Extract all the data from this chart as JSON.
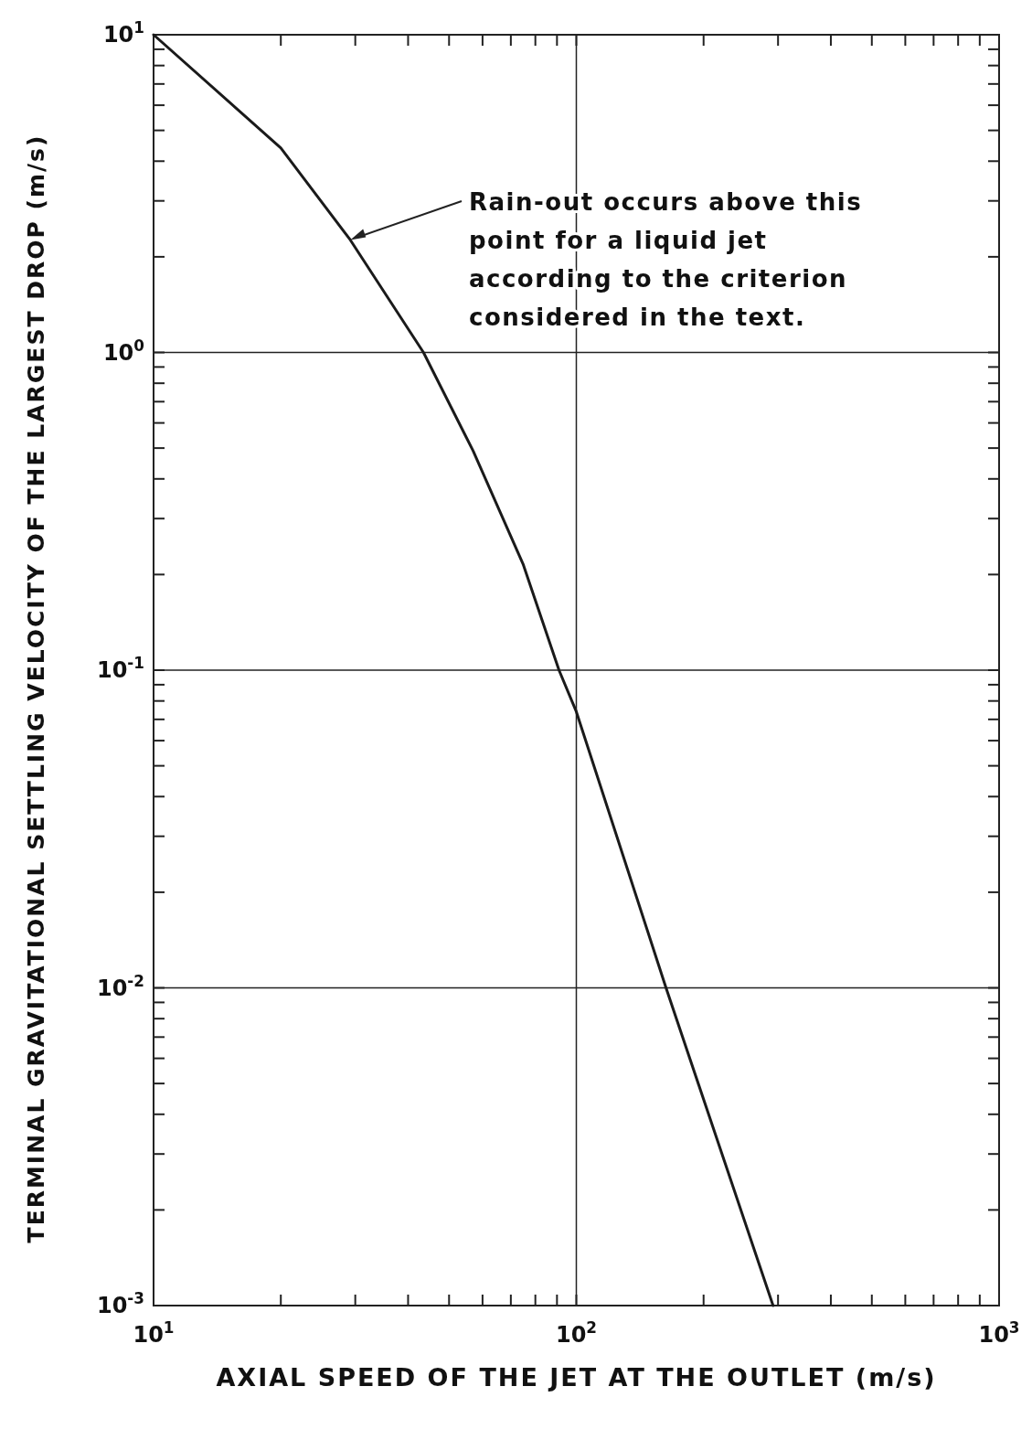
{
  "chart_data": {
    "type": "line",
    "xlabel": "AXIAL SPEED OF THE JET AT THE OUTLET (m/s)",
    "ylabel": "TERMINAL GRAVITATIONAL SETTLING VELOCITY OF THE LARGEST DROP (m/s)",
    "log": "xy",
    "grid": true,
    "marker": "none",
    "line_style": "solid",
    "xlim": [
      10,
      1000
    ],
    "ylim": [
      0.001,
      10
    ],
    "xticks": [
      {
        "value": 10,
        "label": "10$^{1}$"
      },
      {
        "value": 20,
        "label": null
      },
      {
        "value": 30,
        "label": null
      },
      {
        "value": 40,
        "label": null
      },
      {
        "value": 50,
        "label": null
      },
      {
        "value": 60,
        "label": null
      },
      {
        "value": 70,
        "label": null
      },
      {
        "value": 80,
        "label": null
      },
      {
        "value": 90,
        "label": null
      },
      {
        "value": 100,
        "label": "10$^{2}$"
      },
      {
        "value": 200,
        "label": null
      },
      {
        "value": 300,
        "label": null
      },
      {
        "value": 400,
        "label": null
      },
      {
        "value": 500,
        "label": null
      },
      {
        "value": 600,
        "label": null
      },
      {
        "value": 700,
        "label": null
      },
      {
        "value": 800,
        "label": null
      },
      {
        "value": 900,
        "label": null
      },
      {
        "value": 1000,
        "label": "10$^{3}$"
      }
    ],
    "yticks": [
      {
        "value": 0.001,
        "label": "10$^{-3}$"
      },
      {
        "value": 0.002,
        "label": null
      },
      {
        "value": 0.003,
        "label": null
      },
      {
        "value": 0.004,
        "label": null
      },
      {
        "value": 0.005,
        "label": null
      },
      {
        "value": 0.006,
        "label": null
      },
      {
        "value": 0.007,
        "label": null
      },
      {
        "value": 0.008,
        "label": null
      },
      {
        "value": 0.009,
        "label": null
      },
      {
        "value": 0.01,
        "label": "10$^{-2}$"
      },
      {
        "value": 0.02,
        "label": null
      },
      {
        "value": 0.03,
        "label": null
      },
      {
        "value": 0.04,
        "label": null
      },
      {
        "value": 0.05,
        "label": null
      },
      {
        "value": 0.06,
        "label": null
      },
      {
        "value": 0.07,
        "label": null
      },
      {
        "value": 0.08,
        "label": null
      },
      {
        "value": 0.09,
        "label": null
      },
      {
        "value": 0.1,
        "label": "10$^{-1}$"
      },
      {
        "value": 0.2,
        "label": null
      },
      {
        "value": 0.3,
        "label": null
      },
      {
        "value": 0.4,
        "label": null
      },
      {
        "value": 0.5,
        "label": null
      },
      {
        "value": 0.6,
        "label": null
      },
      {
        "value": 0.7,
        "label": null
      },
      {
        "value": 0.8,
        "label": null
      },
      {
        "value": 0.9,
        "label": null
      },
      {
        "value": 1,
        "label": "10$^{0}$"
      },
      {
        "value": 2,
        "label": null
      },
      {
        "value": 3,
        "label": null
      },
      {
        "value": 4,
        "label": null
      },
      {
        "value": 5,
        "label": null
      },
      {
        "value": 6,
        "label": null
      },
      {
        "value": 7,
        "label": null
      },
      {
        "value": 8,
        "label": null
      },
      {
        "value": 9,
        "label": null
      },
      {
        "value": 10,
        "label": "10$^{1}$"
      }
    ],
    "series": [
      {
        "color": "#1a1a1a",
        "x": [
          10,
          20,
          29.2,
          43.5,
          57,
          74.8,
          91,
          100,
          163,
          292
        ],
        "values": [
          10,
          4.4,
          2.26,
          1,
          0.49,
          0.216,
          0.1,
          0.074,
          0.01,
          0.001
        ]
      }
    ],
    "annotations": [
      {
        "text": "Rain-out occurs above this point for a liquid jet according to the criterion considered in the text.",
        "x": 29.2,
        "y": 2.26
      }
    ]
  }
}
